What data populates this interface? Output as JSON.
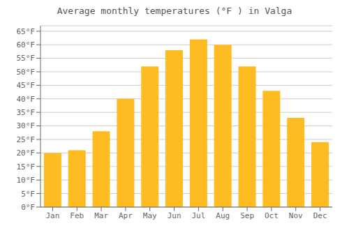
{
  "chart_data": {
    "type": "bar",
    "title": "Average monthly temperatures (°F ) in Valga",
    "categories": [
      "Jan",
      "Feb",
      "Mar",
      "Apr",
      "May",
      "Jun",
      "Jul",
      "Aug",
      "Sep",
      "Oct",
      "Nov",
      "Dec"
    ],
    "values": [
      20,
      21,
      28,
      40,
      52,
      58,
      62,
      60,
      52,
      43,
      33,
      24
    ],
    "color": "#FFBB22",
    "ylim": [
      0,
      67
    ],
    "yticks": [
      {
        "value": 0,
        "label": "0°F"
      },
      {
        "value": 5,
        "label": "5°F"
      },
      {
        "value": 10,
        "label": "10°F"
      },
      {
        "value": 15,
        "label": "15°F"
      },
      {
        "value": 20,
        "label": "20°F"
      },
      {
        "value": 25,
        "label": "25°F"
      },
      {
        "value": 30,
        "label": "30°F"
      },
      {
        "value": 35,
        "label": "35°F"
      },
      {
        "value": 40,
        "label": "40°F"
      },
      {
        "value": 45,
        "label": "45°F"
      },
      {
        "value": 50,
        "label": "50°F"
      },
      {
        "value": 55,
        "label": "55°F"
      },
      {
        "value": 60,
        "label": "60°F"
      },
      {
        "value": 65,
        "label": "65°F"
      }
    ],
    "grid": true
  }
}
